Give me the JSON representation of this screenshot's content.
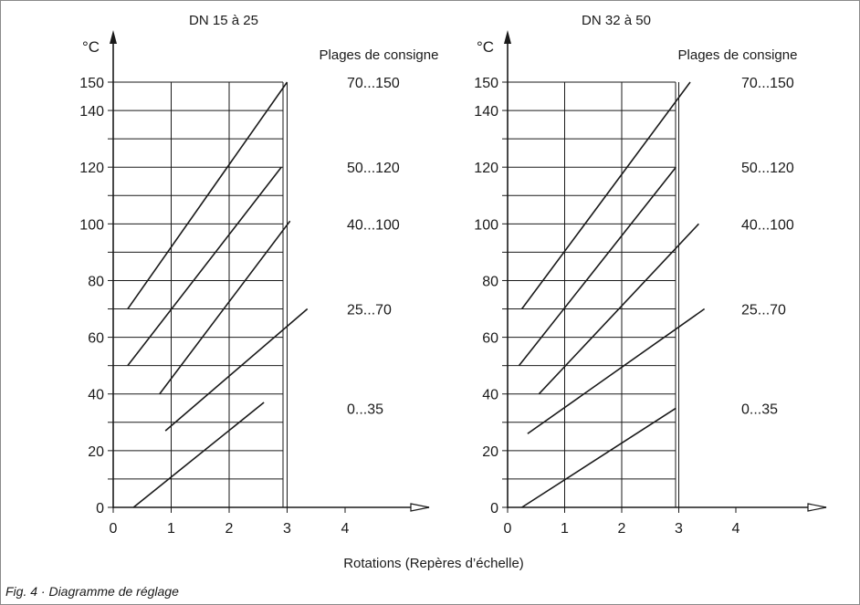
{
  "caption": "Fig. 4 · Diagramme de réglage",
  "xlabel": "Rotations (Repères d’échelle)",
  "chart_data": [
    {
      "type": "line",
      "title": "DN 15 à 25",
      "ylabel": "°C",
      "legend_title": "Plages de consigne",
      "xlim": [
        0,
        4
      ],
      "ylim": [
        0,
        150
      ],
      "xticks": [
        "0",
        "1",
        "2",
        "3",
        "4"
      ],
      "yticks": [
        "0",
        "20",
        "40",
        "60",
        "80",
        "100",
        "120",
        "140",
        "150"
      ],
      "grid": true,
      "series": [
        {
          "name": "70...150",
          "x": [
            0.25,
            3.0
          ],
          "y": [
            70,
            150
          ]
        },
        {
          "name": "50...120",
          "x": [
            0.25,
            2.9
          ],
          "y": [
            50,
            120
          ]
        },
        {
          "name": "40...100",
          "x": [
            0.8,
            3.05
          ],
          "y": [
            40,
            101
          ]
        },
        {
          "name": "25...70",
          "x": [
            0.9,
            3.35
          ],
          "y": [
            27,
            70
          ]
        },
        {
          "name": "0...35",
          "x": [
            0.35,
            2.6
          ],
          "y": [
            0,
            37
          ]
        }
      ]
    },
    {
      "type": "line",
      "title": "DN 32 à 50",
      "ylabel": "°C",
      "legend_title": "Plages de consigne",
      "xlim": [
        0,
        4
      ],
      "ylim": [
        0,
        150
      ],
      "xticks": [
        "0",
        "1",
        "2",
        "3",
        "4"
      ],
      "yticks": [
        "0",
        "20",
        "40",
        "60",
        "80",
        "100",
        "120",
        "140",
        "150"
      ],
      "grid": true,
      "series": [
        {
          "name": "70...150",
          "x": [
            0.25,
            3.2
          ],
          "y": [
            70,
            150
          ]
        },
        {
          "name": "50...120",
          "x": [
            0.2,
            2.95
          ],
          "y": [
            50,
            120
          ]
        },
        {
          "name": "40...100",
          "x": [
            0.55,
            3.35
          ],
          "y": [
            40,
            100
          ]
        },
        {
          "name": "25...70",
          "x": [
            0.35,
            3.45
          ],
          "y": [
            26,
            70
          ]
        },
        {
          "name": "0...35",
          "x": [
            0.25,
            2.95
          ],
          "y": [
            0,
            35
          ]
        }
      ]
    }
  ]
}
